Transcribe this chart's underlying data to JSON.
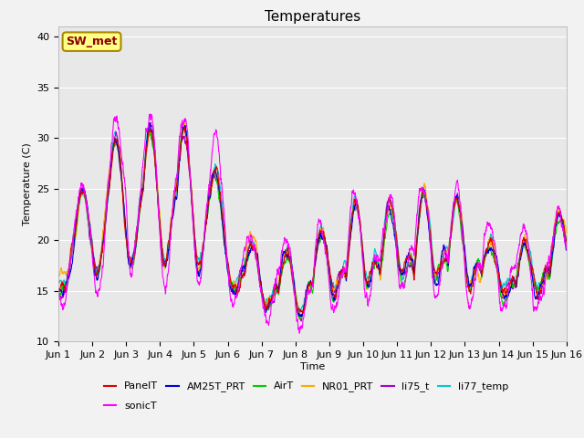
{
  "title": "Temperatures",
  "ylabel": "Temperature (C)",
  "xlabel": "Time",
  "ylim": [
    10,
    41
  ],
  "yticks": [
    10,
    15,
    20,
    25,
    30,
    35,
    40
  ],
  "xlim": [
    0,
    15
  ],
  "xtick_labels": [
    "Jun 1",
    "Jun 2",
    "Jun 3",
    "Jun 4",
    "Jun 5",
    "Jun 6",
    "Jun 7",
    "Jun 8",
    "Jun 9",
    "Jun 10",
    "Jun 11",
    "Jun 12",
    "Jun 13",
    "Jun 14",
    "Jun 15",
    "Jun 16"
  ],
  "series_colors": {
    "PanelT": "#dd0000",
    "AM25T_PRT": "#0000dd",
    "AirT": "#00cc00",
    "NR01_PRT": "#ffaa00",
    "li75_t": "#aa00cc",
    "li77_temp": "#00cccc",
    "sonicT": "#ff00ff"
  },
  "legend_label": "SW_met",
  "plot_bg": "#e8e8e8",
  "fig_bg": "#f2f2f2",
  "grid_color": "#ffffff",
  "title_fontsize": 11,
  "axis_fontsize": 8,
  "tick_fontsize": 8,
  "legend_fontsize": 8,
  "annotation_fontsize": 9
}
